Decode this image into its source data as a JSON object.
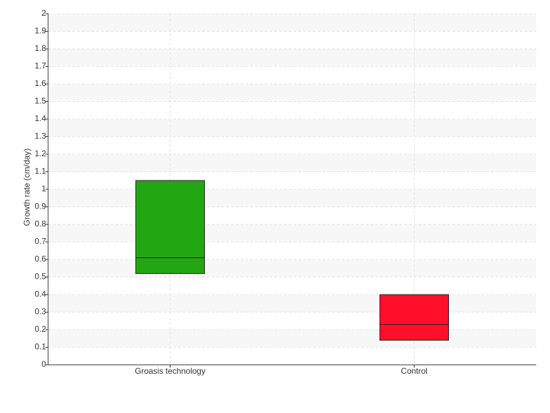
{
  "chart_data": {
    "type": "box",
    "y_label": "Growth rate (cm/day)",
    "categories": [
      "Groasis technology",
      "Control"
    ],
    "low": [
      0.52,
      0.14
    ],
    "median": [
      0.61,
      0.23
    ],
    "high": [
      1.05,
      0.4
    ],
    "colors": [
      "#22a611",
      "#ff0f2a"
    ],
    "ylim": [
      0,
      2
    ],
    "yticks": [
      0,
      0.1,
      0.2,
      0.3,
      0.4,
      0.5,
      0.6,
      0.7,
      0.8,
      0.9,
      1,
      1.1,
      1.2,
      1.3,
      1.4,
      1.5,
      1.6,
      1.7,
      1.8,
      1.9,
      2
    ],
    "grid": true
  }
}
